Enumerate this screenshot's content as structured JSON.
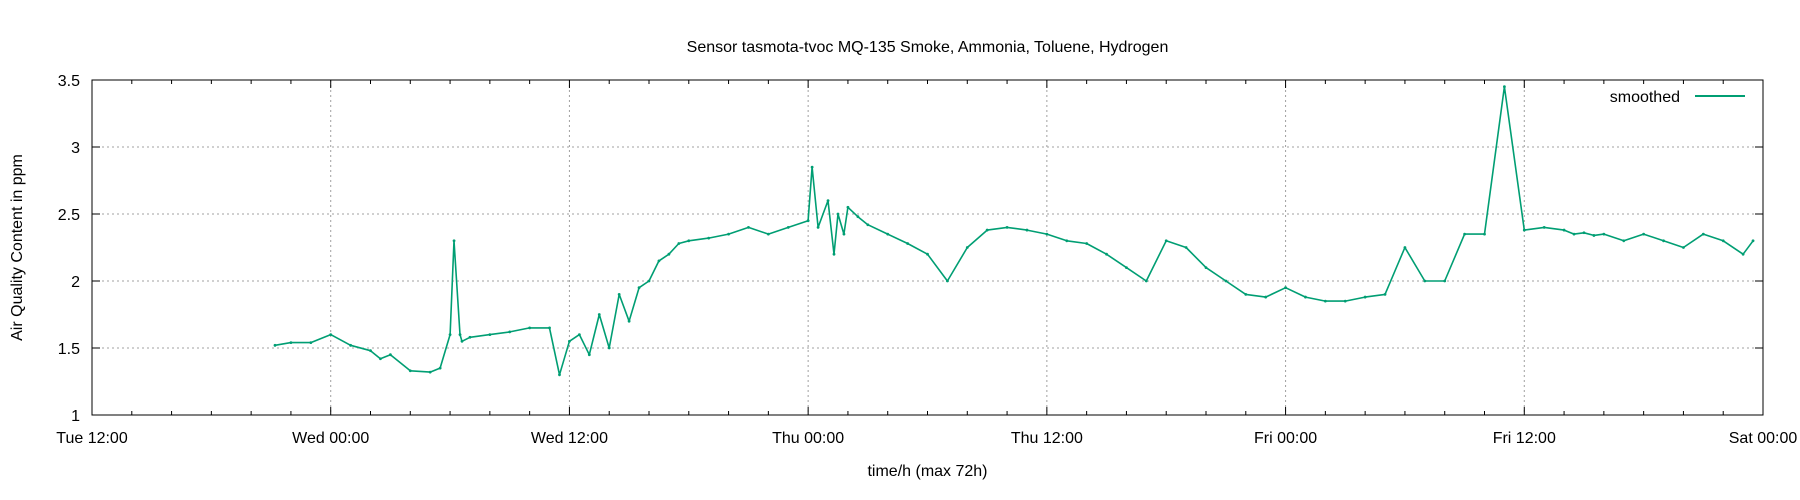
{
  "chart_data": {
    "type": "line",
    "title": "Sensor tasmota-tvoc MQ-135 Smoke, Ammonia, Toluene, Hydrogen",
    "xlabel": "time/h (max 72h)",
    "ylabel": "Air Quality Content in ppm",
    "x_ticks": [
      "Tue 12:00",
      "Wed 00:00",
      "Wed 12:00",
      "Thu 00:00",
      "Thu 12:00",
      "Fri 00:00",
      "Fri 12:00",
      "Sat 00:00"
    ],
    "x_range_hours": [
      0,
      84
    ],
    "y_ticks": [
      "1",
      "1.5",
      "2",
      "2.5",
      "3",
      "3.5"
    ],
    "ylim": [
      1,
      3.5
    ],
    "grid": true,
    "legend_position": "top-right",
    "series": [
      {
        "name": "smoothed",
        "color": "#009e73",
        "x_hours": [
          9.2,
          10,
          11,
          12,
          13,
          14,
          14.5,
          15,
          16,
          17,
          17.5,
          18,
          18.2,
          18.5,
          18.6,
          19,
          20,
          21,
          22,
          23,
          23.5,
          24,
          24.5,
          25,
          25.5,
          26,
          26.5,
          27,
          27.5,
          28,
          28.5,
          29,
          29.5,
          30,
          31,
          32,
          33,
          34,
          35,
          36,
          36.2,
          36.5,
          37,
          37.3,
          37.5,
          37.8,
          38,
          38.5,
          39,
          40,
          41,
          42,
          43,
          44,
          45,
          46,
          47,
          48,
          49,
          50,
          51,
          52,
          53,
          54,
          55,
          56,
          57,
          58,
          59,
          60,
          61,
          62,
          63,
          64,
          65,
          66,
          67,
          68,
          69,
          70,
          71,
          72,
          73,
          74,
          74.5,
          75,
          75.5,
          76,
          77,
          78,
          79,
          80,
          81,
          82,
          83,
          83.5
        ],
        "y_ppm": [
          1.52,
          1.54,
          1.54,
          1.6,
          1.52,
          1.48,
          1.42,
          1.45,
          1.33,
          1.32,
          1.35,
          1.6,
          2.3,
          1.6,
          1.55,
          1.58,
          1.6,
          1.62,
          1.65,
          1.65,
          1.3,
          1.55,
          1.6,
          1.45,
          1.75,
          1.5,
          1.9,
          1.7,
          1.95,
          2.0,
          2.15,
          2.2,
          2.28,
          2.3,
          2.32,
          2.35,
          2.4,
          2.35,
          2.4,
          2.45,
          2.85,
          2.4,
          2.6,
          2.2,
          2.5,
          2.35,
          2.55,
          2.48,
          2.42,
          2.35,
          2.28,
          2.2,
          2.0,
          2.25,
          2.38,
          2.4,
          2.38,
          2.35,
          2.3,
          2.28,
          2.2,
          2.1,
          2.0,
          2.3,
          2.25,
          2.1,
          2.0,
          1.9,
          1.88,
          1.95,
          1.88,
          1.85,
          1.85,
          1.88,
          1.9,
          2.25,
          2.0,
          2.0,
          2.35,
          2.35,
          3.45,
          2.38,
          2.4,
          2.38,
          2.35,
          2.36,
          2.34,
          2.35,
          2.3,
          2.35,
          2.3,
          2.25,
          2.35,
          2.3,
          2.2,
          2.3
        ]
      }
    ]
  }
}
